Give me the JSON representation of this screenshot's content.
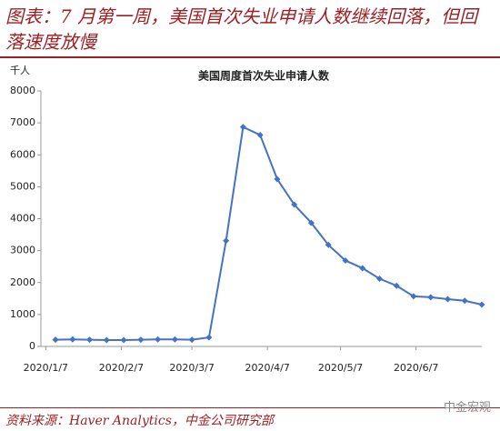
{
  "header": {
    "title": "图表：7 月第一周，美国首次失业申请人数继续回落，但回落速度放慢"
  },
  "chart_data": {
    "type": "line",
    "title": "美国周度首次失业申请人数",
    "y_label": "千人",
    "x": [
      "2020/1/11",
      "2020/1/18",
      "2020/1/25",
      "2020/2/1",
      "2020/2/8",
      "2020/2/15",
      "2020/2/22",
      "2020/2/29",
      "2020/3/7",
      "2020/3/14",
      "2020/3/21",
      "2020/3/28",
      "2020/4/4",
      "2020/4/11",
      "2020/4/18",
      "2020/4/25",
      "2020/5/2",
      "2020/5/9",
      "2020/5/16",
      "2020/5/23",
      "2020/5/30",
      "2020/6/6",
      "2020/6/13",
      "2020/6/20",
      "2020/6/27",
      "2020/7/4"
    ],
    "series": [
      {
        "name": "美国周度首次失业申请人数",
        "color": "#4472c4",
        "values": [
          210,
          220,
          210,
          200,
          200,
          210,
          220,
          220,
          210,
          280,
          3310,
          6870,
          6620,
          5240,
          4440,
          3870,
          3180,
          2690,
          2450,
          2120,
          1900,
          1570,
          1540,
          1480,
          1430,
          1310
        ]
      }
    ],
    "xlim": [
      "2020/1/5",
      "2020/7/4"
    ],
    "xticks": [
      "2020/1/7",
      "2020/2/7",
      "2020/3/7",
      "2020/4/7",
      "2020/5/7",
      "2020/6/7"
    ],
    "ylim": [
      0,
      8000
    ],
    "yticks": [
      0,
      1000,
      2000,
      3000,
      4000,
      5000,
      6000,
      7000,
      8000
    ],
    "grid": false
  },
  "footer": {
    "source": "资料来源：Haver Analytics，中金公司研究部",
    "watermark": "中金宏观"
  }
}
